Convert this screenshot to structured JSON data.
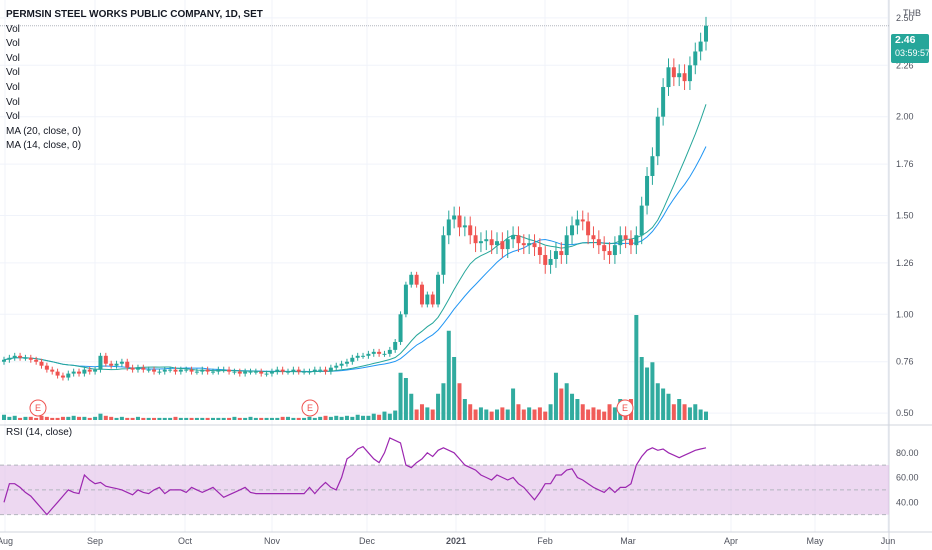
{
  "header": {
    "title": "PERMSIN STEEL WORKS PUBLIC COMPANY, 1D, SET",
    "currency": "THB",
    "indicators": [
      "Vol",
      "Vol",
      "Vol",
      "Vol",
      "Vol",
      "Vol",
      "Vol",
      "MA (20, close, 0)",
      "MA (14, close, 0)"
    ]
  },
  "last_price": {
    "value": "2.46",
    "countdown": "03:59:57"
  },
  "rsi_title": "RSI (14, close)",
  "earnings_marker": "E",
  "colors": {
    "up": "#26a69a",
    "down": "#ef5350",
    "rsi": "#9c27b0",
    "ma20": "#2196f3",
    "ma14": "#26a69a",
    "rsi_band": "#e1bee7"
  },
  "chart_data": [
    {
      "type": "candlestick",
      "x_axis": {
        "tick_labels": [
          "Aug",
          "Sep",
          "Oct",
          "Nov",
          "Dec",
          "2021",
          "Feb",
          "Mar",
          "Apr",
          "May",
          "Jun"
        ]
      },
      "y_axis": {
        "tick_labels": [
          "2.50",
          "2.26",
          "2.00",
          "1.76",
          "1.50",
          "1.26",
          "1.00",
          "0.76",
          "0.50"
        ],
        "range": [
          0.45,
          2.55
        ]
      },
      "earnings_dates": [
        "Aug",
        "Nov",
        "Mar"
      ],
      "closes": [
        0.77,
        0.78,
        0.79,
        0.78,
        0.78,
        0.77,
        0.76,
        0.74,
        0.72,
        0.71,
        0.69,
        0.68,
        0.7,
        0.71,
        0.7,
        0.72,
        0.71,
        0.72,
        0.79,
        0.75,
        0.74,
        0.75,
        0.76,
        0.73,
        0.72,
        0.73,
        0.72,
        0.72,
        0.71,
        0.71,
        0.72,
        0.72,
        0.71,
        0.72,
        0.72,
        0.71,
        0.71,
        0.72,
        0.71,
        0.71,
        0.72,
        0.72,
        0.71,
        0.71,
        0.7,
        0.71,
        0.71,
        0.71,
        0.7,
        0.7,
        0.71,
        0.72,
        0.71,
        0.71,
        0.72,
        0.71,
        0.71,
        0.71,
        0.72,
        0.72,
        0.71,
        0.73,
        0.74,
        0.75,
        0.76,
        0.78,
        0.79,
        0.79,
        0.8,
        0.81,
        0.8,
        0.8,
        0.82,
        0.86,
        1.0,
        1.15,
        1.2,
        1.15,
        1.05,
        1.1,
        1.05,
        1.2,
        1.4,
        1.48,
        1.5,
        1.44,
        1.45,
        1.4,
        1.36,
        1.37,
        1.38,
        1.35,
        1.37,
        1.33,
        1.38,
        1.4,
        1.36,
        1.35,
        1.36,
        1.34,
        1.3,
        1.25,
        1.28,
        1.32,
        1.3,
        1.4,
        1.45,
        1.48,
        1.47,
        1.4,
        1.38,
        1.35,
        1.32,
        1.3,
        1.35,
        1.4,
        1.38,
        1.35,
        1.4,
        1.55,
        1.7,
        1.8,
        2.0,
        2.15,
        2.25,
        2.2,
        2.22,
        2.18,
        2.26,
        2.33,
        2.38,
        2.46
      ],
      "series": [
        {
          "name": "MA (20, close, 0)",
          "from_closes": true,
          "period": 20
        },
        {
          "name": "MA (14, close, 0)",
          "from_closes": true,
          "period": 14
        }
      ],
      "volume_relative": [
        0.05,
        0.03,
        0.04,
        0.02,
        0.03,
        0.03,
        0.02,
        0.04,
        0.03,
        0.02,
        0.02,
        0.03,
        0.03,
        0.04,
        0.03,
        0.03,
        0.02,
        0.03,
        0.06,
        0.04,
        0.03,
        0.02,
        0.03,
        0.02,
        0.02,
        0.03,
        0.02,
        0.02,
        0.02,
        0.02,
        0.02,
        0.02,
        0.03,
        0.02,
        0.02,
        0.02,
        0.02,
        0.02,
        0.02,
        0.02,
        0.02,
        0.02,
        0.02,
        0.03,
        0.02,
        0.02,
        0.03,
        0.02,
        0.02,
        0.02,
        0.02,
        0.02,
        0.03,
        0.03,
        0.02,
        0.02,
        0.02,
        0.03,
        0.02,
        0.03,
        0.04,
        0.03,
        0.04,
        0.03,
        0.04,
        0.03,
        0.05,
        0.04,
        0.04,
        0.06,
        0.05,
        0.08,
        0.06,
        0.09,
        0.45,
        0.4,
        0.25,
        0.1,
        0.15,
        0.12,
        0.1,
        0.25,
        0.35,
        0.85,
        0.6,
        0.35,
        0.2,
        0.15,
        0.1,
        0.12,
        0.1,
        0.08,
        0.1,
        0.12,
        0.1,
        0.3,
        0.15,
        0.1,
        0.12,
        0.1,
        0.12,
        0.08,
        0.15,
        0.45,
        0.3,
        0.35,
        0.25,
        0.2,
        0.15,
        0.1,
        0.12,
        0.1,
        0.08,
        0.15,
        0.12,
        0.2,
        0.15,
        0.2,
        1.0,
        0.6,
        0.5,
        0.55,
        0.35,
        0.3,
        0.25,
        0.15,
        0.2,
        0.15,
        0.12,
        0.15,
        0.1,
        0.08
      ]
    },
    {
      "type": "line",
      "title": "RSI (14, close)",
      "y_axis": {
        "tick_labels": [
          "80.00",
          "60.00",
          "40.00"
        ],
        "range": [
          20,
          100
        ]
      },
      "band": [
        30,
        70
      ],
      "values": [
        40,
        55,
        55,
        52,
        48,
        45,
        40,
        35,
        30,
        35,
        40,
        45,
        50,
        48,
        47,
        62,
        58,
        55,
        56,
        53,
        52,
        51,
        50,
        48,
        46,
        50,
        48,
        47,
        50,
        52,
        47,
        50,
        50,
        50,
        48,
        52,
        50,
        48,
        50,
        52,
        48,
        44,
        46,
        48,
        50,
        52,
        48,
        47,
        47,
        47,
        47,
        47,
        47,
        47,
        47,
        47,
        47,
        52,
        47,
        52,
        56,
        52,
        50,
        60,
        75,
        78,
        83,
        85,
        80,
        75,
        72,
        80,
        92,
        90,
        88,
        70,
        68,
        72,
        75,
        80,
        77,
        82,
        84,
        82,
        80,
        75,
        70,
        68,
        66,
        62,
        60,
        58,
        62,
        60,
        58,
        60,
        55,
        52,
        47,
        42,
        48,
        55,
        55,
        62,
        62,
        66,
        67,
        60,
        58,
        55,
        52,
        50,
        48,
        52,
        48,
        52,
        52,
        55,
        70,
        77,
        82,
        84,
        82,
        83,
        80,
        78,
        76,
        78,
        80,
        82,
        83,
        84
      ]
    }
  ]
}
